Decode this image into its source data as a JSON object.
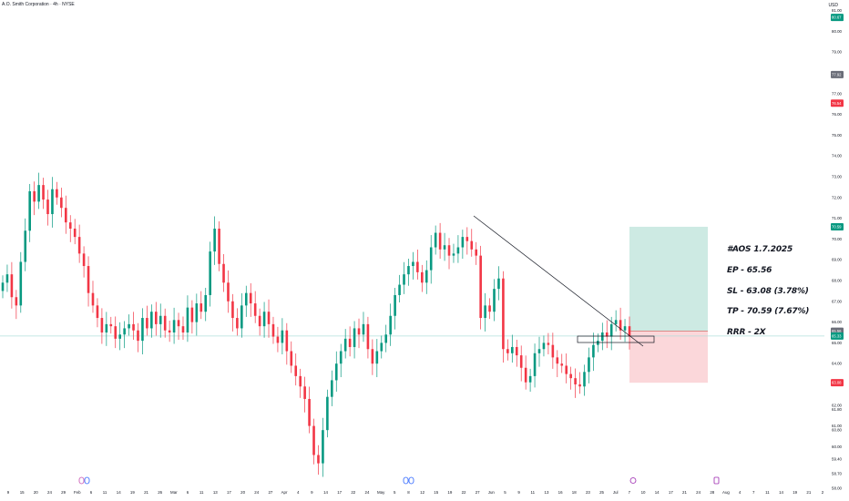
{
  "header": {
    "title": "A.O. Smith Corporation · 4h · NYSE",
    "currency": "USD"
  },
  "trade_note": {
    "line1": "#AOS 1.7.2025",
    "line2": "EP - 65.56",
    "line3": "SL - 63.08 (3.78%)",
    "line4": "TP - 70.59 (7.67%)",
    "line5": "RRR - 2X"
  },
  "colors": {
    "up": "#089981",
    "down": "#f23645",
    "target_zone": "#cdeae3",
    "stop_zone": "#fbd7da",
    "price_line": "#b2dfdb"
  },
  "chart_data": {
    "type": "candlestick",
    "title": "",
    "xlabel": "",
    "ylabel": "",
    "ylim": [
      57.0,
      82.0
    ],
    "grid": false,
    "y_ticks": [
      58.0,
      58.7,
      59.4,
      60.0,
      60.8,
      61.0,
      61.8,
      62.0,
      63.0,
      64.0,
      65.0,
      66.0,
      67.0,
      68.0,
      69.0,
      70.0,
      71.0,
      72.0,
      73.0,
      74.0,
      75.0,
      76.0,
      77.0,
      78.0,
      79.0,
      80.0,
      81.0,
      82.0
    ],
    "x_ticks": [
      "9",
      "15",
      "20",
      "24",
      "29",
      "Feb",
      "6",
      "11",
      "14",
      "19",
      "21",
      "26",
      "Mar",
      "6",
      "11",
      "13",
      "17",
      "20",
      "24",
      "27",
      "Apr",
      "4",
      "9",
      "14",
      "17",
      "22",
      "24",
      "May",
      "5",
      "8",
      "12",
      "15",
      "19",
      "22",
      "27",
      "Jun",
      "5",
      "9",
      "11",
      "13",
      "16",
      "18",
      "23",
      "25",
      "Jul",
      "7",
      "10",
      "14",
      "17",
      "21",
      "24",
      "28",
      "Aug",
      "4",
      "7",
      "11",
      "14",
      "19",
      "21",
      "2"
    ],
    "price_badges": [
      {
        "label": "80.67",
        "value": 80.67,
        "color": "#089981"
      },
      {
        "label": "77.92",
        "value": 77.92,
        "color": "#6a6d78"
      },
      {
        "label": "76.54",
        "value": 76.54,
        "color": "#f23645"
      },
      {
        "label": "70.59",
        "value": 70.59,
        "color": "#089981"
      },
      {
        "label": "65.56",
        "value": 65.56,
        "color": "#6a6d78"
      },
      {
        "label": "65.33",
        "value": 65.33,
        "color": "#089981"
      },
      {
        "label": "63.08",
        "value": 63.08,
        "color": "#f23645"
      }
    ],
    "last_price": 65.33,
    "position": {
      "entry": 65.56,
      "stop": 63.08,
      "target": 70.59
    },
    "closes": [
      67.9,
      68.3,
      67.2,
      66.8,
      68.9,
      70.4,
      72.3,
      71.8,
      72.6,
      71.9,
      71.2,
      72.4,
      72.0,
      71.5,
      70.8,
      70.5,
      70.1,
      69.3,
      68.7,
      67.4,
      66.8,
      66.2,
      65.5,
      65.9,
      65.8,
      65.2,
      65.4,
      65.7,
      65.9,
      65.6,
      65.1,
      66.2,
      65.7,
      66.5,
      65.9,
      66.3,
      65.6,
      65.5,
      66.1,
      65.8,
      65.5,
      66.7,
      66.0,
      66.9,
      66.5,
      67.3,
      69.4,
      70.5,
      68.8,
      67.9,
      67.0,
      66.2,
      65.7,
      66.8,
      67.4,
      66.9,
      66.3,
      65.8,
      66.5,
      65.9,
      65.3,
      65.0,
      65.6,
      64.6,
      63.9,
      63.4,
      62.9,
      62.3,
      61.0,
      59.6,
      59.2,
      60.8,
      62.4,
      63.2,
      64.0,
      64.6,
      65.2,
      64.8,
      65.7,
      65.4,
      65.9,
      64.7,
      64.0,
      64.6,
      65.0,
      65.4,
      66.3,
      67.3,
      67.8,
      68.3,
      68.7,
      68.9,
      68.4,
      67.9,
      68.5,
      69.6,
      70.3,
      69.5,
      69.7,
      69.2,
      69.3,
      69.6,
      70.1,
      69.9,
      69.5,
      69.2,
      66.2,
      66.8,
      66.5,
      67.6,
      68.1,
      64.7,
      64.5,
      64.8,
      64.4,
      63.8,
      63.1,
      63.4,
      64.5,
      64.7,
      65.0,
      64.9,
      64.3,
      64.0,
      63.9,
      63.5,
      63.3,
      63.0,
      62.9,
      63.6,
      64.3,
      64.9,
      65.1,
      65.5,
      65.3,
      65.9,
      66.1,
      65.6,
      65.8,
      65.33
    ]
  }
}
